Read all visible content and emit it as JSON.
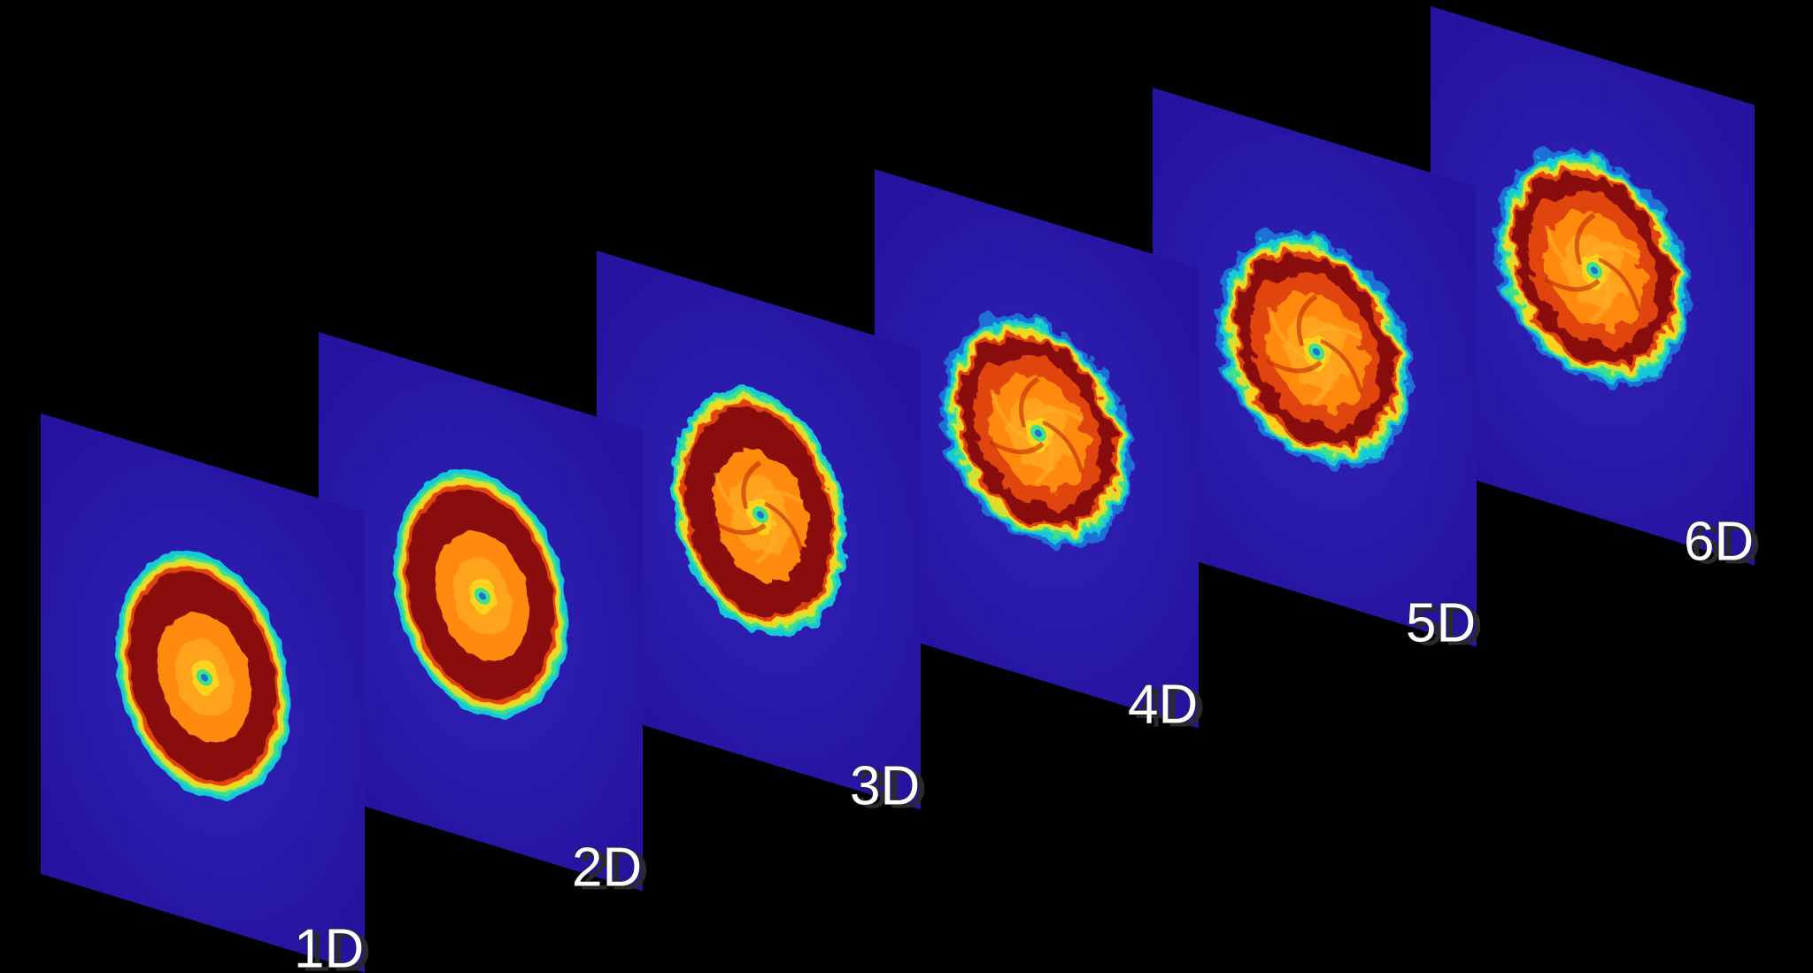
{
  "figure": {
    "background": "#000000",
    "plane_color": "#2a1aa8",
    "colormap": [
      "#2a1aa8",
      "#1e6fd6",
      "#19c9d9",
      "#3fe08a",
      "#c8e43a",
      "#ffd21a",
      "#ff8a0a",
      "#e0440a",
      "#8a0c0a"
    ],
    "slices": [
      {
        "label": "1D",
        "shape": "smooth-ellipse"
      },
      {
        "label": "2D",
        "shape": "smooth-ellipse"
      },
      {
        "label": "3D",
        "shape": "ragged-ellipse"
      },
      {
        "label": "4D",
        "shape": "turbulent"
      },
      {
        "label": "5D",
        "shape": "turbulent"
      },
      {
        "label": "6D",
        "shape": "turbulent"
      }
    ]
  }
}
